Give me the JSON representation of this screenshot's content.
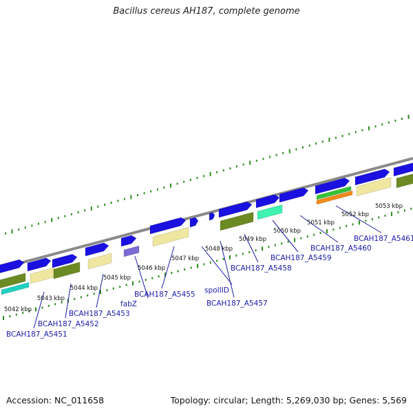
{
  "title": "Bacillus cereus AH187, complete genome",
  "footer": {
    "accession": "Accession: NC_011658",
    "topology": "Topology: circular; Length: 5,269,030 bp; Genes: 5,569"
  },
  "colors": {
    "backbone": "#8a8a8a",
    "cds": "#1a10e0",
    "gc_skew": "#2e8b1f",
    "tan": "#efe6a0",
    "olive": "#6b8a23",
    "cyan": "#1fd0c0",
    "mint": "#3ff2b0",
    "purple": "#7d6ad6",
    "green": "#36c236",
    "orange": "#f08a1a",
    "label": "#1a1aa6"
  },
  "kbp_ticks": [
    "5042 kbp",
    "5043 kbp",
    "5044 kbp",
    "5045 kbp",
    "5046 kbp",
    "5047 kbp",
    "5048 kbp",
    "5049 kbp",
    "5050 kbp",
    "5051 kbp",
    "5052 kbp",
    "5053 kbp"
  ],
  "genes": [
    "BCAH187_A5451",
    "BCAH187_A5452",
    "BCAH187_A5453",
    "fabZ",
    "BCAH187_A5455",
    "spoIIID",
    "BCAH187_A5457",
    "BCAH187_A5458",
    "BCAH187_A5459",
    "BCAH187_A5460",
    "BCAH187_A5461"
  ]
}
